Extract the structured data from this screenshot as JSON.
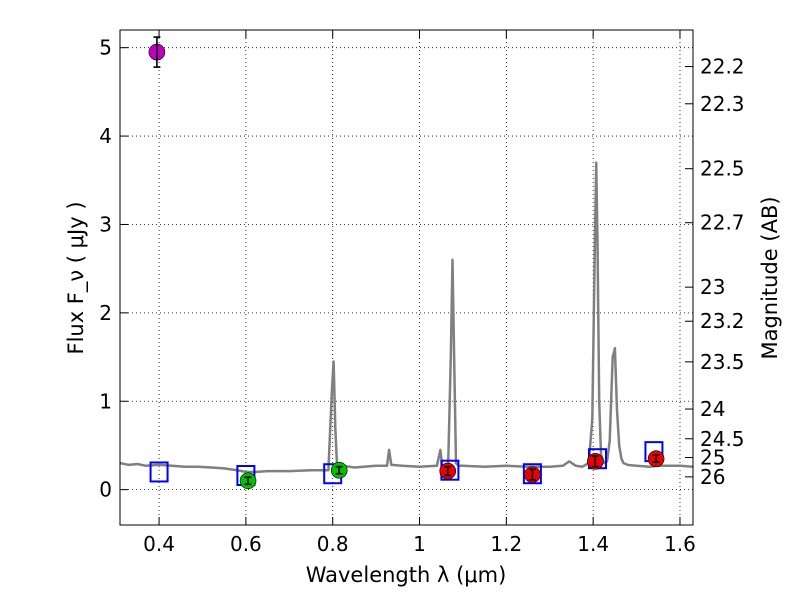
{
  "chart_data": {
    "type": "scatter",
    "xlabel": "Wavelength  λ (μm)",
    "ylabel": "Flux  F_ν  ( μJy )",
    "ylabel_right": "Magnitude (AB)",
    "xlim": [
      0.31,
      1.63
    ],
    "ylim": [
      -0.4,
      5.2
    ],
    "grid": true,
    "x_ticks": [
      0.4,
      0.6,
      0.8,
      1.0,
      1.2,
      1.4,
      1.6
    ],
    "x_tick_labels": [
      "0.4",
      "0.6",
      "0.8",
      "1",
      "1.2",
      "1.4",
      "1.6"
    ],
    "y_ticks": [
      0,
      1,
      2,
      3,
      4,
      5
    ],
    "y_tick_labels": [
      "0",
      "1",
      "2",
      "3",
      "4",
      "5"
    ],
    "magnitude_ticks": [
      {
        "mag": 22.2,
        "label": "22.2"
      },
      {
        "mag": 22.3,
        "label": "22.3"
      },
      {
        "mag": 22.5,
        "label": "22.5"
      },
      {
        "mag": 22.7,
        "label": "22.7"
      },
      {
        "mag": 23,
        "label": "23"
      },
      {
        "mag": 23.2,
        "label": "23.2"
      },
      {
        "mag": 23.5,
        "label": "23.5"
      },
      {
        "mag": 24,
        "label": "24"
      },
      {
        "mag": 24.5,
        "label": "24.5"
      },
      {
        "mag": 25,
        "label": "25"
      },
      {
        "mag": 26,
        "label": "26"
      }
    ],
    "series": [
      {
        "kind": "model-spectrum",
        "color": "#808080",
        "x": [
          0.31,
          0.33,
          0.35,
          0.37,
          0.4,
          0.43,
          0.46,
          0.49,
          0.52,
          0.55,
          0.58,
          0.6,
          0.62,
          0.65,
          0.7,
          0.75,
          0.79,
          0.798,
          0.802,
          0.806,
          0.81,
          0.85,
          0.9,
          0.925,
          0.93,
          0.935,
          0.96,
          1.0,
          1.04,
          1.048,
          1.052,
          1.058,
          1.066,
          1.072,
          1.076,
          1.08,
          1.084,
          1.09,
          1.1,
          1.15,
          1.2,
          1.25,
          1.3,
          1.33,
          1.345,
          1.36,
          1.375,
          1.39,
          1.398,
          1.403,
          1.407,
          1.41,
          1.414,
          1.418,
          1.425,
          1.432,
          1.438,
          1.445,
          1.45,
          1.455,
          1.46,
          1.465,
          1.47,
          1.48,
          1.5,
          1.53,
          1.55,
          1.57,
          1.6,
          1.63
        ],
        "y": [
          0.3,
          0.28,
          0.29,
          0.27,
          0.28,
          0.27,
          0.26,
          0.26,
          0.25,
          0.24,
          0.22,
          0.2,
          0.2,
          0.21,
          0.21,
          0.22,
          0.22,
          1.1,
          1.45,
          0.7,
          0.28,
          0.25,
          0.27,
          0.27,
          0.45,
          0.28,
          0.27,
          0.26,
          0.27,
          0.45,
          0.28,
          0.27,
          0.3,
          1.5,
          2.6,
          1.4,
          0.3,
          0.27,
          0.27,
          0.26,
          0.27,
          0.26,
          0.26,
          0.27,
          0.32,
          0.27,
          0.26,
          0.3,
          0.8,
          2.5,
          3.7,
          2.8,
          1.0,
          0.4,
          0.3,
          0.32,
          0.55,
          1.5,
          1.6,
          0.9,
          0.5,
          0.35,
          0.3,
          0.28,
          0.27,
          0.26,
          0.27,
          0.27,
          0.27,
          0.26
        ]
      },
      {
        "kind": "model-photometry",
        "marker": "square",
        "color": "#0000ff",
        "x": [
          0.4,
          0.6,
          0.8,
          1.07,
          1.26,
          1.41,
          1.54
        ],
        "y": [
          0.2,
          0.16,
          0.18,
          0.22,
          0.18,
          0.35,
          0.43
        ]
      },
      {
        "kind": "observed-photometry",
        "marker": "circle",
        "points": [
          {
            "x": 0.395,
            "y": 4.95,
            "err": 0.17,
            "color": "#c000c0"
          },
          {
            "x": 0.605,
            "y": 0.1,
            "err": 0.04,
            "color": "#00c000"
          },
          {
            "x": 0.815,
            "y": 0.22,
            "err": 0.04,
            "color": "#00c000"
          },
          {
            "x": 1.065,
            "y": 0.21,
            "err": 0.05,
            "color": "#ee0000"
          },
          {
            "x": 1.26,
            "y": 0.17,
            "err": 0.06,
            "color": "#ee0000"
          },
          {
            "x": 1.405,
            "y": 0.32,
            "err": 0.06,
            "color": "#ee0000"
          },
          {
            "x": 1.545,
            "y": 0.35,
            "err": 0.04,
            "color": "#ee0000"
          }
        ]
      }
    ]
  }
}
